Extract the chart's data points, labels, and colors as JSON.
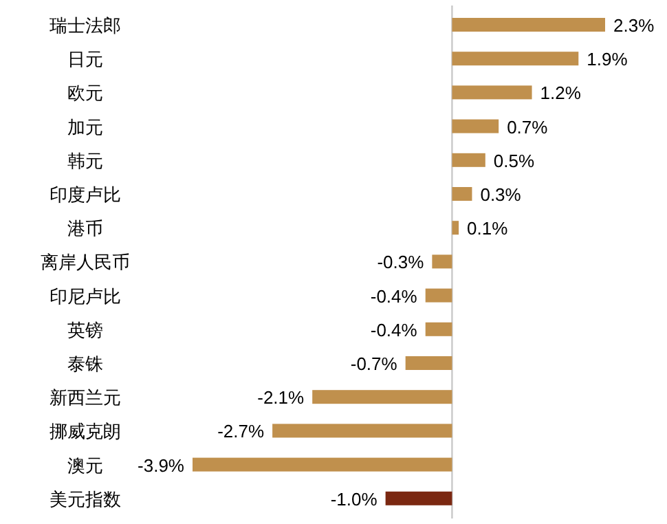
{
  "chart_data": {
    "type": "bar",
    "orientation": "horizontal",
    "categories": [
      "瑞士法郎",
      "日元",
      "欧元",
      "加元",
      "韩元",
      "印度卢比",
      "港币",
      "离岸人民币",
      "印尼卢比",
      "英镑",
      "泰铢",
      "新西兰元",
      "挪威克朗",
      "澳元",
      "美元指数"
    ],
    "values": [
      2.3,
      1.9,
      1.2,
      0.7,
      0.5,
      0.3,
      0.1,
      -0.3,
      -0.4,
      -0.4,
      -0.7,
      -2.1,
      -2.7,
      -3.9,
      -1.0
    ],
    "value_labels": [
      "2.3%",
      "1.9%",
      "1.2%",
      "0.7%",
      "0.5%",
      "0.3%",
      "0.1%",
      "-0.3%",
      "-0.4%",
      "-0.4%",
      "-0.7%",
      "-2.1%",
      "-2.7%",
      "-3.9%",
      "-1.0%"
    ],
    "colors": [
      "#c0904d",
      "#c0904d",
      "#c0904d",
      "#c0904d",
      "#c0904d",
      "#c0904d",
      "#c0904d",
      "#c0904d",
      "#c0904d",
      "#c0904d",
      "#c0904d",
      "#c0904d",
      "#c0904d",
      "#c0904d",
      "#7b2811"
    ]
  }
}
